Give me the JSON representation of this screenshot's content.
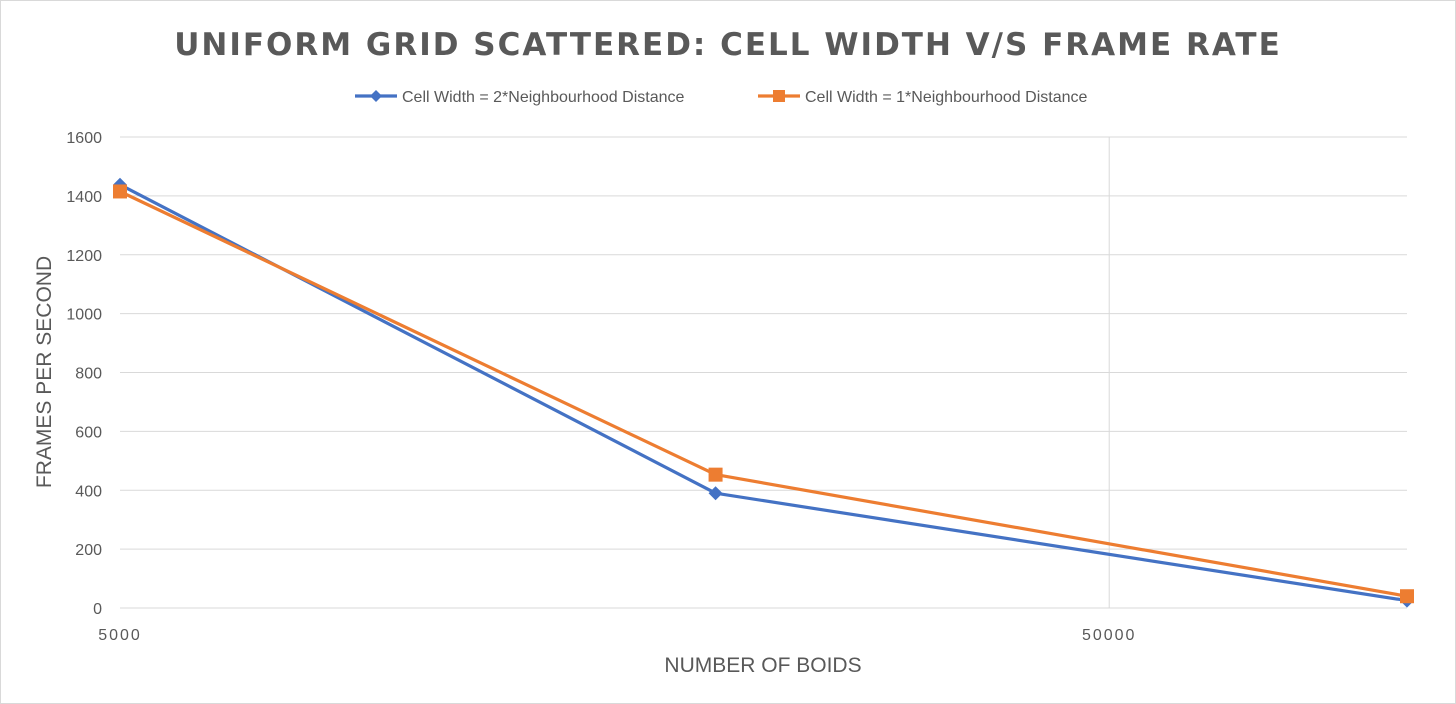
{
  "chart_data": {
    "type": "line",
    "title": "UNIFORM GRID SCATTERED: CELL WIDTH V/S FRAME RATE",
    "xlabel": "NUMBER OF BOIDS",
    "ylabel": "FRAMES PER SECOND",
    "x_scale": "log",
    "xlim": [
      5000,
      100000
    ],
    "ylim": [
      0,
      1600
    ],
    "y_ticks": [
      0,
      200,
      400,
      600,
      800,
      1000,
      1200,
      1400,
      1600
    ],
    "x_ticks": [
      5000,
      50000
    ],
    "x_tick_labels": [
      "5000",
      "50000"
    ],
    "grid": true,
    "legend_position": "top",
    "series": [
      {
        "name": "Cell Width = 2*Neighbourhood Distance",
        "color": "#4472c4",
        "marker": "diamond",
        "x": [
          5000,
          20000,
          100000
        ],
        "y": [
          1438,
          390,
          25
        ]
      },
      {
        "name": "Cell Width = 1*Neighbourhood Distance",
        "color": "#ed7d31",
        "marker": "square",
        "x": [
          5000,
          20000,
          100000
        ],
        "y": [
          1415,
          453,
          40
        ]
      }
    ]
  }
}
